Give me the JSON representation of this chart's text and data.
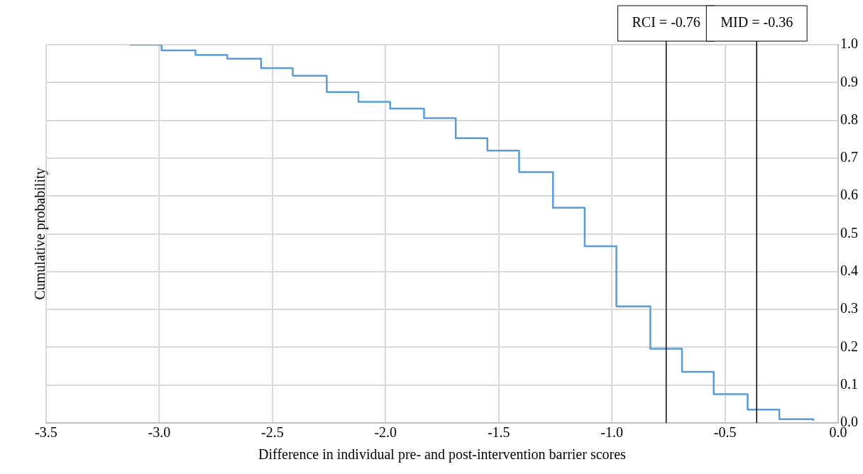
{
  "chart_data": {
    "type": "step",
    "xlabel": "Difference in individual pre- and post-intervention barrier scores",
    "ylabel": "Cumulative probability",
    "x": [
      -3.13,
      -2.99,
      -2.84,
      -2.7,
      -2.55,
      -2.41,
      -2.26,
      -2.12,
      -1.98,
      -1.83,
      -1.69,
      -1.55,
      -1.41,
      -1.26,
      -1.12,
      -0.98,
      -0.83,
      -0.69,
      -0.55,
      -0.4,
      -0.26,
      -0.11
    ],
    "series": [
      {
        "color": "#5b9bd5",
        "values": [
          1.0,
          0.985,
          0.973,
          0.963,
          0.938,
          0.918,
          0.875,
          0.849,
          0.831,
          0.806,
          0.753,
          0.72,
          0.663,
          0.569,
          0.467,
          0.308,
          0.196,
          0.135,
          0.076,
          0.035,
          0.01,
          0.005
        ]
      }
    ],
    "xlim": [
      -3.5,
      0
    ],
    "xticks": [
      {
        "value": -3.5,
        "label": "-3.5"
      },
      {
        "value": -3,
        "label": "-3.0"
      },
      {
        "value": -2.5,
        "label": "-2.5"
      },
      {
        "value": -2,
        "label": "-2.0"
      },
      {
        "value": -1.5,
        "label": "-1.5"
      },
      {
        "value": -1,
        "label": "-1.0"
      },
      {
        "value": -0.5,
        "label": "-0.5"
      },
      {
        "value": 0,
        "label": "0.0"
      }
    ],
    "ylim": [
      0,
      1
    ],
    "yticks": [
      {
        "value": 0,
        "label": "0.0"
      },
      {
        "value": 0.1,
        "label": "0.1"
      },
      {
        "value": 0.2,
        "label": "0.2"
      },
      {
        "value": 0.3,
        "label": "0.3"
      },
      {
        "value": 0.4,
        "label": "0.4"
      },
      {
        "value": 0.5,
        "label": "0.5"
      },
      {
        "value": 0.6,
        "label": "0.6"
      },
      {
        "value": 0.7,
        "label": "0.7"
      },
      {
        "value": 0.8,
        "label": "0.8"
      },
      {
        "value": 0.9,
        "label": "0.9"
      },
      {
        "value": 1,
        "label": "1.0"
      }
    ],
    "ref_lines": [
      {
        "axis": "x",
        "value": -0.76,
        "label": "RCI = -0.76",
        "color": "#000000"
      },
      {
        "axis": "x",
        "value": -0.36,
        "label": "MID = -0.36",
        "color": "#000000"
      }
    ],
    "grid": true,
    "legend": false,
    "marker": "none",
    "line_style": "solid"
  }
}
